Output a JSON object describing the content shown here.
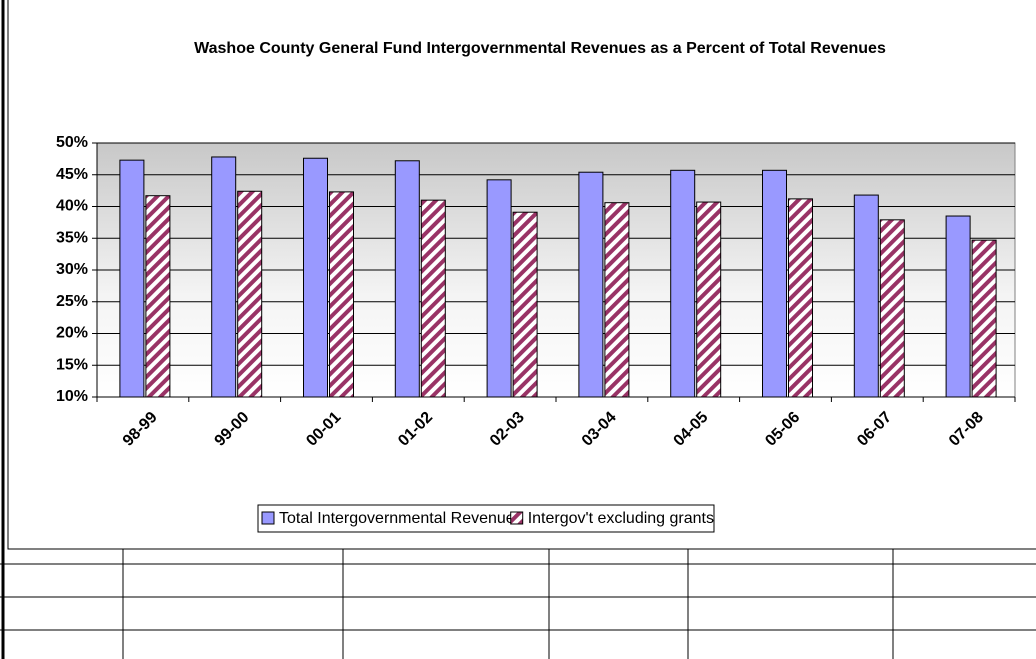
{
  "chart_data": {
    "type": "bar",
    "title": "Washoe County General Fund Intergovernmental Revenues as a Percent of Total Revenues",
    "categories": [
      "98-99",
      "99-00",
      "00-01",
      "01-02",
      "02-03",
      "03-04",
      "04-05",
      "05-06",
      "06-07",
      "07-08"
    ],
    "series": [
      {
        "name": "Total Intergovernmental Revenue",
        "color": "#9999ff",
        "values": [
          47.3,
          47.8,
          47.6,
          47.2,
          44.2,
          45.4,
          45.7,
          45.7,
          41.8,
          38.5
        ]
      },
      {
        "name": "Intergov't excluding grants",
        "color": "#993366",
        "pattern": "hatch",
        "values": [
          41.7,
          42.4,
          42.3,
          41.0,
          39.1,
          40.6,
          40.7,
          41.2,
          37.9,
          34.7
        ]
      }
    ],
    "ylim": [
      10,
      50
    ],
    "yticks": [
      {
        "value": 10,
        "label": "10%"
      },
      {
        "value": 15,
        "label": "15%"
      },
      {
        "value": 20,
        "label": "20%"
      },
      {
        "value": 25,
        "label": "25%"
      },
      {
        "value": 30,
        "label": "30%"
      },
      {
        "value": 35,
        "label": "35%"
      },
      {
        "value": 40,
        "label": "40%"
      },
      {
        "value": 45,
        "label": "45%"
      },
      {
        "value": 50,
        "label": "50%"
      }
    ],
    "grid": true,
    "legend": "bottom"
  }
}
